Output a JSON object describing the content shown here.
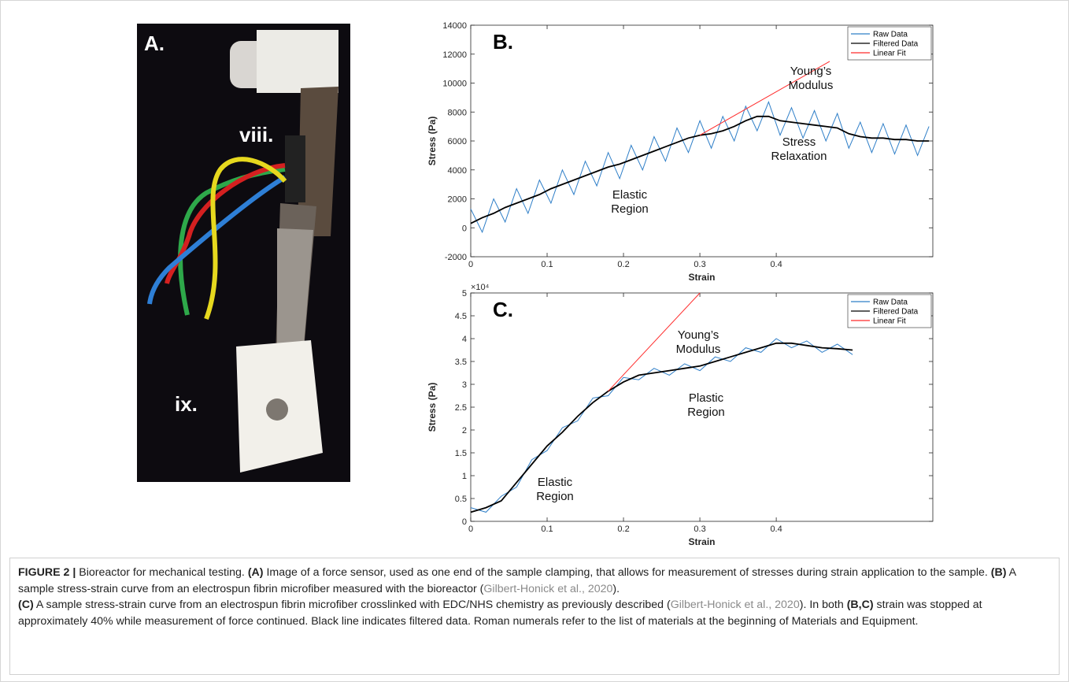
{
  "photo": {
    "labels": [
      "A.",
      "viii.",
      "ix."
    ]
  },
  "chart_data": [
    {
      "type": "line",
      "panel_label": "B.",
      "xlabel": "Strain",
      "ylabel": "Stress (Pa)",
      "xlim": [
        0,
        0.605
      ],
      "ylim": [
        -2000,
        14000
      ],
      "xticks": [
        0,
        0.1,
        0.2,
        0.3,
        0.4
      ],
      "yticks": [
        -2000,
        0,
        2000,
        4000,
        6000,
        8000,
        10000,
        12000,
        14000
      ],
      "grid": false,
      "legend": "upper right",
      "series": [
        {
          "name": "Raw Data",
          "color": "#2f7fc8",
          "x": [
            0,
            0.015,
            0.03,
            0.045,
            0.06,
            0.075,
            0.09,
            0.105,
            0.12,
            0.135,
            0.15,
            0.165,
            0.18,
            0.195,
            0.21,
            0.225,
            0.24,
            0.255,
            0.27,
            0.285,
            0.3,
            0.315,
            0.33,
            0.345,
            0.36,
            0.375,
            0.39,
            0.405,
            0.42,
            0.435,
            0.45,
            0.465,
            0.48,
            0.495,
            0.51,
            0.525,
            0.54,
            0.555,
            0.57,
            0.585,
            0.6
          ],
          "values": [
            1300,
            -300,
            2000,
            400,
            2700,
            1000,
            3300,
            1700,
            4000,
            2300,
            4600,
            2900,
            5200,
            3400,
            5700,
            4000,
            6300,
            4600,
            6900,
            5200,
            7400,
            5500,
            7700,
            6000,
            8400,
            6700,
            8700,
            6400,
            8300,
            6200,
            8100,
            6000,
            7900,
            5500,
            7300,
            5200,
            7200,
            5100,
            7100,
            5000,
            7000
          ]
        },
        {
          "name": "Filtered Data",
          "color": "#000000",
          "x": [
            0,
            0.015,
            0.03,
            0.045,
            0.06,
            0.075,
            0.09,
            0.105,
            0.12,
            0.135,
            0.15,
            0.165,
            0.18,
            0.195,
            0.21,
            0.225,
            0.24,
            0.255,
            0.27,
            0.285,
            0.3,
            0.315,
            0.33,
            0.345,
            0.36,
            0.375,
            0.39,
            0.405,
            0.42,
            0.435,
            0.45,
            0.465,
            0.48,
            0.495,
            0.51,
            0.525,
            0.54,
            0.555,
            0.57,
            0.585,
            0.6
          ],
          "values": [
            300,
            700,
            1000,
            1400,
            1700,
            2000,
            2300,
            2700,
            3000,
            3300,
            3600,
            3900,
            4200,
            4400,
            4700,
            5000,
            5300,
            5600,
            5900,
            6200,
            6400,
            6500,
            6700,
            7000,
            7400,
            7700,
            7700,
            7400,
            7300,
            7200,
            7100,
            7000,
            6900,
            6500,
            6300,
            6200,
            6200,
            6100,
            6100,
            6000,
            6000
          ]
        },
        {
          "name": "Linear Fit",
          "color": "#ff2a2a",
          "x": [
            0.3,
            0.47
          ],
          "values": [
            6400,
            11500
          ]
        }
      ],
      "annotations": [
        [
          "Young’s",
          "Modulus"
        ],
        [
          "Stress",
          "Relaxation"
        ],
        [
          "Elastic",
          "Region"
        ]
      ]
    },
    {
      "type": "line",
      "panel_label": "C.",
      "xlabel": "Strain",
      "ylabel": "Stress (Pa)",
      "y_exponent_label": "×10⁴",
      "xlim": [
        0,
        0.605
      ],
      "ylim": [
        0,
        50000
      ],
      "xticks": [
        0,
        0.1,
        0.2,
        0.3,
        0.4
      ],
      "yticks": [
        0,
        {
          "value": 5000,
          "label": "0.5"
        },
        {
          "value": 10000,
          "label": "1"
        },
        {
          "value": 15000,
          "label": "1.5"
        },
        {
          "value": 20000,
          "label": "2"
        },
        {
          "value": 25000,
          "label": "2.5"
        },
        {
          "value": 30000,
          "label": "3"
        },
        {
          "value": 35000,
          "label": "3.5"
        },
        {
          "value": 40000,
          "label": "4"
        },
        {
          "value": 45000,
          "label": "4.5"
        },
        {
          "value": 50000,
          "label": "5"
        }
      ],
      "grid": false,
      "legend": "upper right",
      "series": [
        {
          "name": "Raw Data",
          "color": "#2f7fc8",
          "x": [
            0,
            0.02,
            0.04,
            0.06,
            0.08,
            0.1,
            0.12,
            0.14,
            0.16,
            0.18,
            0.2,
            0.22,
            0.24,
            0.26,
            0.28,
            0.3,
            0.32,
            0.34,
            0.36,
            0.38,
            0.4,
            0.42,
            0.44,
            0.46,
            0.48,
            0.5
          ],
          "values": [
            3000,
            2000,
            5500,
            7500,
            13500,
            15500,
            20500,
            22000,
            27000,
            27500,
            31500,
            31000,
            33500,
            32000,
            34500,
            33000,
            36000,
            35000,
            38000,
            37000,
            40000,
            38000,
            39500,
            37000,
            38800,
            36500
          ]
        },
        {
          "name": "Filtered Data",
          "color": "#000000",
          "x": [
            0,
            0.02,
            0.04,
            0.06,
            0.08,
            0.1,
            0.12,
            0.14,
            0.16,
            0.18,
            0.2,
            0.22,
            0.24,
            0.26,
            0.28,
            0.3,
            0.32,
            0.34,
            0.36,
            0.38,
            0.4,
            0.42,
            0.44,
            0.46,
            0.48,
            0.5
          ],
          "values": [
            2000,
            3000,
            4500,
            8500,
            12500,
            16500,
            19500,
            23000,
            26000,
            28500,
            30500,
            32000,
            32500,
            33000,
            33500,
            34000,
            35000,
            36000,
            37000,
            38000,
            39000,
            39000,
            38500,
            38000,
            37800,
            37500
          ]
        },
        {
          "name": "Linear Fit",
          "color": "#ff2a2a",
          "x": [
            0.18,
            0.3
          ],
          "values": [
            28500,
            50000
          ]
        }
      ],
      "annotations": [
        [
          "Young’s",
          "Modulus"
        ],
        [
          "Plastic",
          "Region"
        ],
        [
          "Elastic",
          "Region"
        ]
      ]
    }
  ],
  "caption": [
    "FIGURE 2 |",
    "Bioreactor for mechanical testing.",
    "(A)",
    "Image of a force sensor, used as one end of the sample clamping, that allows for measurement of stresses during strain application to the sample.",
    "(B)",
    "A sample stress-strain curve from an electrospun fibrin microfiber measured with the bioreactor (",
    "Gilbert-Honick et al., 2020",
    ").",
    "(C)",
    "A sample stress-strain curve from an electrospun fibrin microfiber crosslinked with EDC/NHS chemistry as previously described (",
    "Gilbert-Honick et al., 2020",
    ").",
    "In both",
    "(B,C)",
    "strain was stopped at approximately 40% while measurement of force continued. Black line indicates filtered data. Roman numerals refer to the list of materials at the beginning of Materials and Equipment."
  ]
}
